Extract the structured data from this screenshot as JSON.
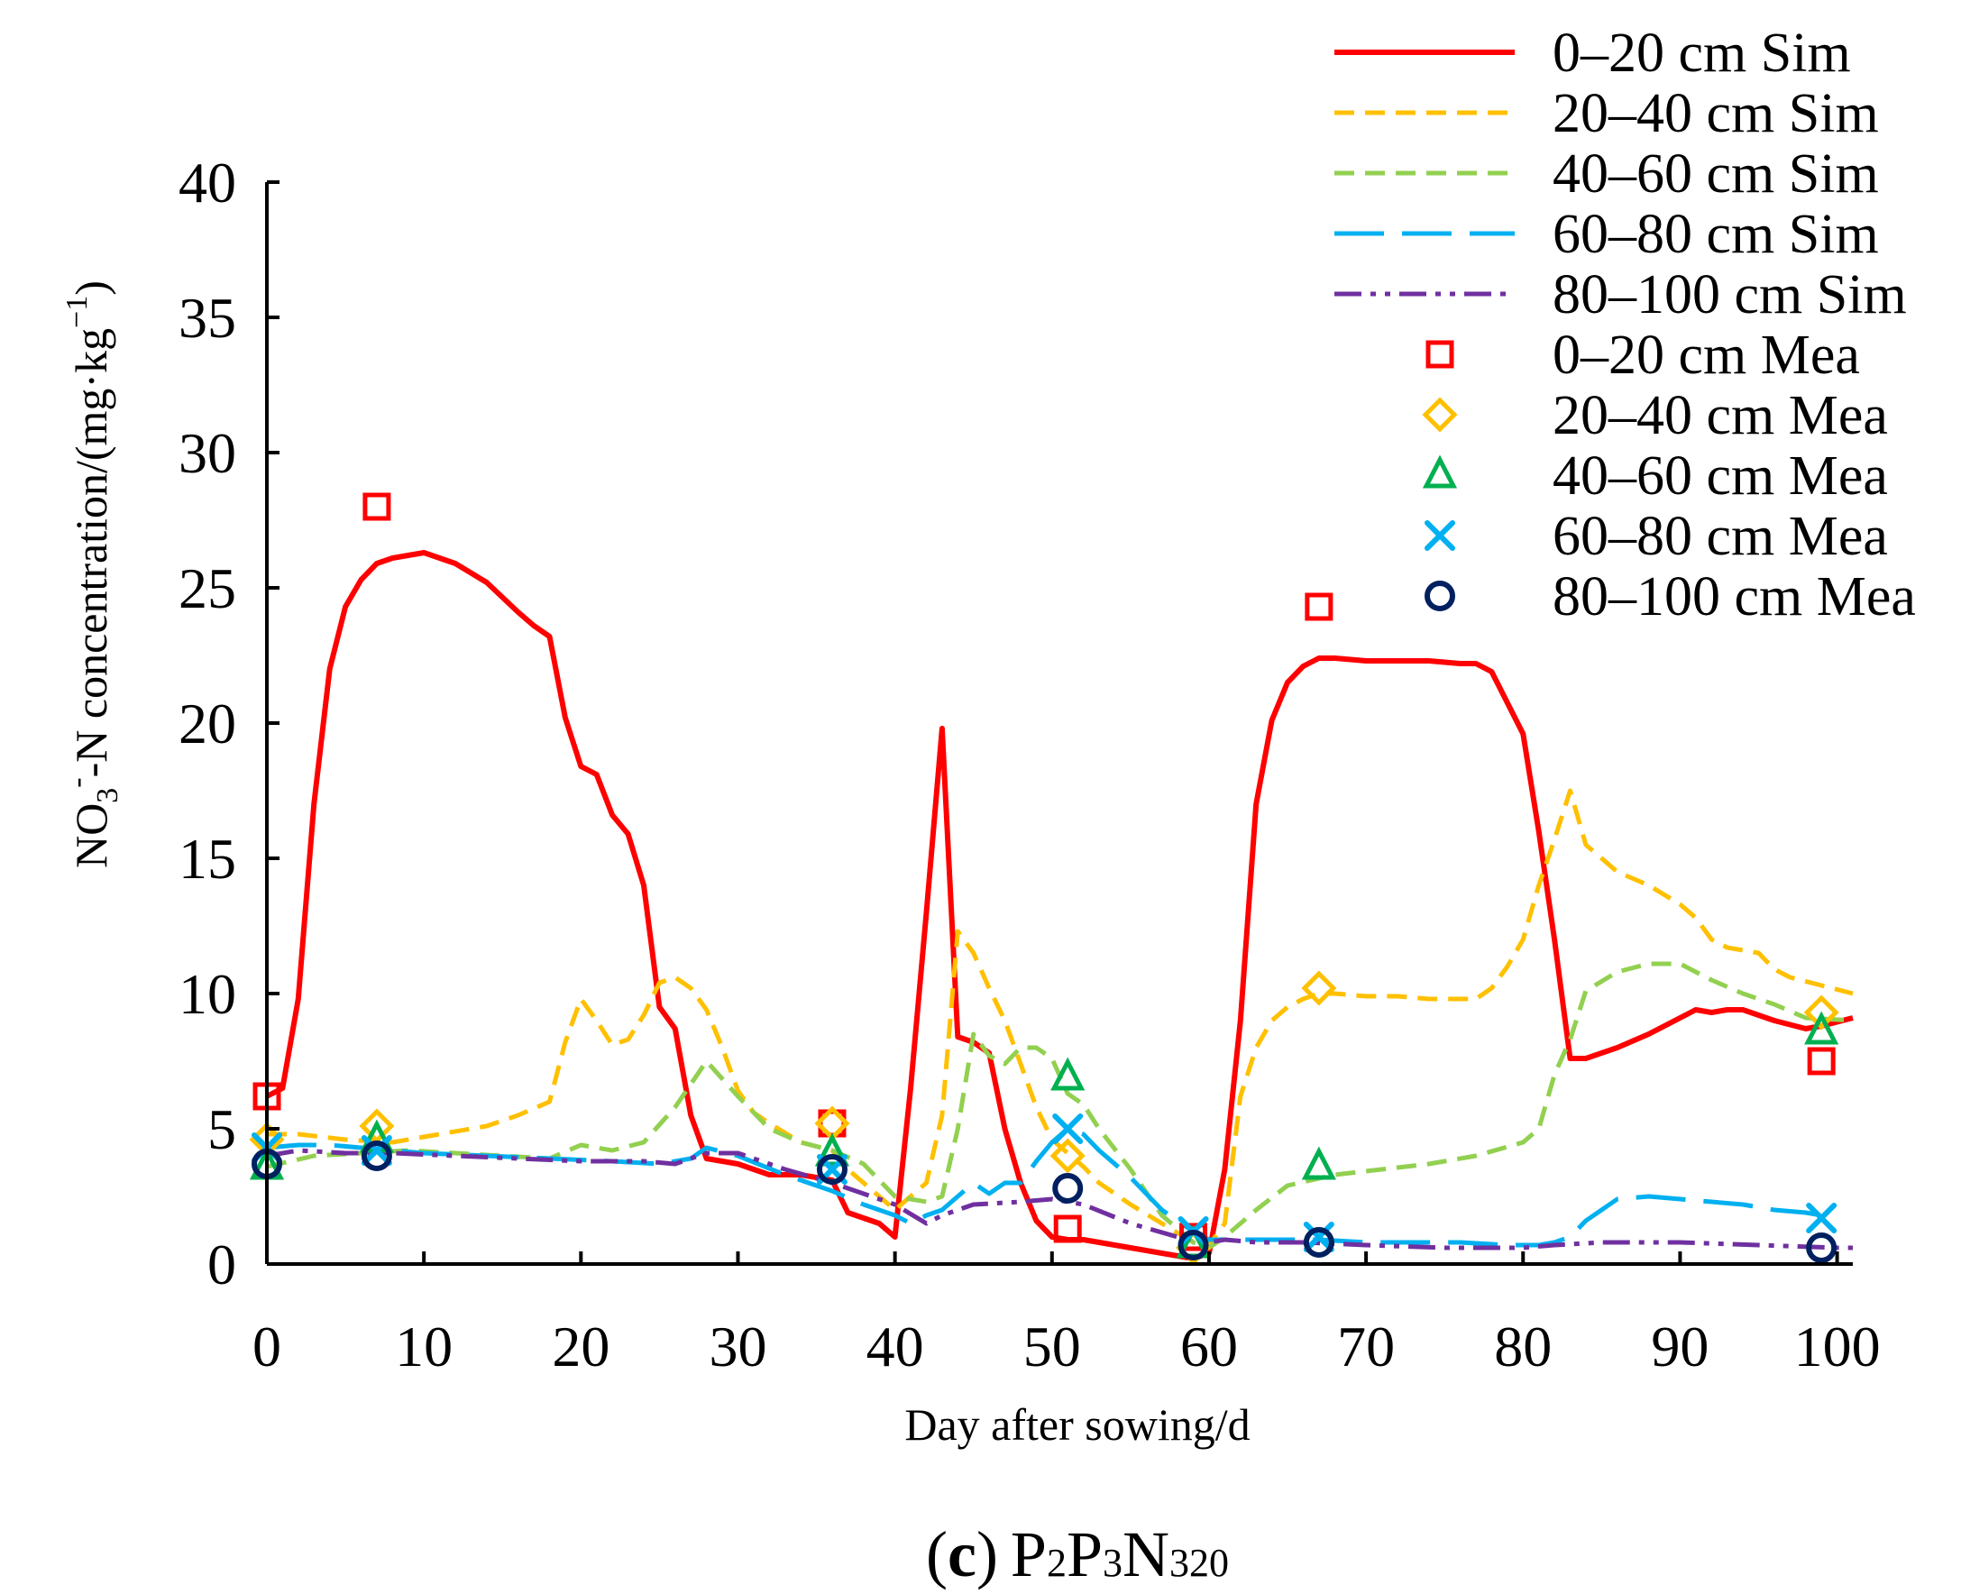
{
  "chart_data": {
    "type": "line",
    "xlabel": "Day after sowing/d",
    "ylabel": {
      "prefix": "NO",
      "sub": "3",
      "sup": "-",
      "middle": "-N concentration/(mg·kg",
      "sup2": "−1",
      "suffix": ")"
    },
    "xlim": [
      0,
      101
    ],
    "ylim": [
      0,
      40
    ],
    "xticks": [
      "0",
      "10",
      "20",
      "30",
      "40",
      "50",
      "60",
      "70",
      "80",
      "90",
      "100"
    ],
    "yticks": [
      "0",
      "5",
      "10",
      "15",
      "20",
      "25",
      "30",
      "35",
      "40"
    ],
    "caption": {
      "paren_open": "(",
      "letter": "c",
      "paren_close": ")",
      "p1": "P",
      "s1": "2",
      "p2": "P",
      "s2": "3",
      "n": "N",
      "s3": "320"
    },
    "legend_position": "top-right",
    "series": [
      {
        "name": "0–20 cm Sim",
        "kind": "line",
        "color": "#ff0000",
        "dash": "solid",
        "x": [
          0,
          1,
          2,
          3,
          4,
          5,
          6,
          7,
          8,
          10,
          12,
          14,
          16,
          17,
          18,
          19,
          20,
          21,
          22,
          23,
          24,
          25,
          26,
          27,
          28,
          29,
          30,
          32,
          34,
          36,
          37,
          38,
          39,
          40,
          41,
          42,
          43,
          44,
          45,
          46,
          47,
          48,
          49,
          50,
          51,
          52,
          55,
          58,
          59,
          60,
          61,
          62,
          63,
          64,
          65,
          66,
          67,
          68,
          70,
          72,
          74,
          76,
          77,
          78,
          80,
          81,
          82,
          83,
          84,
          86,
          88,
          90,
          91,
          92,
          93,
          94,
          96,
          98,
          99,
          101
        ],
        "y": [
          6.2,
          6.5,
          9.8,
          17,
          22,
          24.3,
          25.3,
          25.9,
          26.1,
          26.3,
          25.9,
          25.2,
          24.1,
          23.6,
          23.2,
          20.2,
          18.4,
          18.1,
          16.6,
          15.9,
          14,
          9.5,
          8.7,
          5.5,
          3.9,
          3.8,
          3.7,
          3.3,
          3.3,
          3.1,
          1.9,
          1.7,
          1.5,
          1,
          6.5,
          13,
          19.8,
          8.4,
          8.2,
          7.8,
          5,
          3,
          1.6,
          1,
          0.9,
          0.9,
          0.6,
          0.3,
          0.2,
          0.4,
          3.5,
          9,
          17,
          20.1,
          21.5,
          22.1,
          22.4,
          22.4,
          22.3,
          22.3,
          22.3,
          22.2,
          22.2,
          21.9,
          19.6,
          16,
          12,
          7.6,
          7.6,
          8,
          8.5,
          9.1,
          9.4,
          9.3,
          9.4,
          9.4,
          9,
          8.7,
          8.8,
          9.1
        ]
      },
      {
        "name": "20–40 cm Sim",
        "kind": "line",
        "color": "#ffc000",
        "dash": "dashed",
        "x": [
          0,
          2,
          5,
          8,
          11,
          14,
          16,
          18,
          19,
          20,
          21,
          22,
          23,
          24,
          25,
          26,
          27,
          28,
          29,
          30,
          31,
          32,
          34,
          36,
          37,
          38,
          39,
          40,
          41,
          42,
          43,
          44,
          45,
          46,
          47,
          48,
          49,
          50,
          51,
          52,
          53,
          55,
          57,
          59,
          60,
          61,
          62,
          63,
          64,
          65,
          66,
          67,
          68,
          70,
          72,
          74,
          76,
          77,
          78,
          79,
          80,
          81,
          82,
          83,
          84,
          86,
          88,
          90,
          91,
          92,
          93,
          95,
          96,
          97,
          99,
          101
        ],
        "y": [
          4.8,
          4.8,
          4.6,
          4.5,
          4.8,
          5.1,
          5.5,
          6,
          8.2,
          9.8,
          9,
          8.1,
          8.3,
          9.2,
          10.4,
          10.6,
          10.2,
          9.4,
          8,
          6.4,
          5.6,
          5.2,
          4.5,
          4.2,
          3.5,
          3,
          2.5,
          2,
          2.5,
          3,
          5.5,
          12.3,
          11.5,
          10.2,
          9,
          7.4,
          5.8,
          4.6,
          4.1,
          3.6,
          3,
          2.2,
          1.5,
          0.8,
          0.7,
          1.5,
          6.2,
          8,
          9,
          9.5,
          9.8,
          10,
          10,
          9.9,
          9.9,
          9.8,
          9.8,
          9.8,
          10.2,
          11,
          12,
          14,
          15.7,
          17.5,
          15.5,
          14.5,
          14,
          13.3,
          12.8,
          12,
          11.7,
          11.5,
          10.9,
          10.6,
          10.3,
          10
        ]
      },
      {
        "name": "40–60 cm Sim",
        "kind": "line",
        "color": "#92d050",
        "dash": "dashed",
        "x": [
          0,
          3,
          6,
          9,
          12,
          15,
          18,
          20,
          22,
          24,
          26,
          28,
          30,
          32,
          34,
          36,
          38,
          40,
          42,
          43,
          44,
          45,
          46,
          47,
          48,
          49,
          50,
          51,
          52,
          53,
          55,
          57,
          59,
          60,
          61,
          63,
          65,
          68,
          71,
          74,
          77,
          80,
          81,
          82,
          83,
          84,
          86,
          88,
          90,
          92,
          94,
          96,
          98,
          101
        ],
        "y": [
          3.6,
          4,
          4.1,
          4.2,
          4.1,
          4,
          3.9,
          4.4,
          4.2,
          4.5,
          5.8,
          7.5,
          6.2,
          5,
          4.5,
          4.2,
          3.7,
          2.5,
          2.3,
          2.5,
          5,
          8.5,
          7.7,
          7.4,
          8,
          8,
          7.6,
          6.3,
          5.9,
          5,
          3.5,
          1.8,
          0.8,
          0.6,
          1,
          2,
          2.9,
          3.3,
          3.5,
          3.7,
          4,
          4.5,
          5,
          7,
          8.3,
          10.1,
          10.8,
          11.1,
          11.1,
          10.5,
          10,
          9.6,
          9.1,
          9
        ]
      },
      {
        "name": "60–80 cm Sim",
        "kind": "line",
        "color": "#00b0f0",
        "dash": "longdash",
        "x": [
          0,
          2,
          4,
          6,
          8,
          10,
          14,
          18,
          22,
          25,
          27,
          28,
          30,
          33,
          36,
          38,
          40,
          41,
          42,
          43,
          44,
          45,
          46,
          47,
          48,
          49,
          50,
          51,
          52,
          53,
          55,
          57,
          59,
          60,
          61,
          64,
          67,
          70,
          73,
          76,
          79,
          80,
          81,
          82,
          83,
          84,
          86,
          88,
          90,
          92,
          94,
          96,
          98,
          99
        ],
        "y": [
          4.3,
          4.4,
          4.4,
          4.3,
          4.2,
          4.1,
          4,
          3.9,
          3.8,
          3.7,
          3.9,
          4.3,
          4,
          3.3,
          2.7,
          2.2,
          1.8,
          1.5,
          1.8,
          2,
          2.5,
          3,
          2.6,
          3,
          3,
          3.8,
          4.5,
          5,
          4.8,
          4.2,
          3.2,
          2,
          1.2,
          0.9,
          0.9,
          0.9,
          0.9,
          0.8,
          0.8,
          0.8,
          0.7,
          0.7,
          0.7,
          0.8,
          1,
          1.6,
          2.4,
          2.5,
          2.4,
          2.3,
          2.2,
          2,
          1.9,
          1.8
        ]
      },
      {
        "name": "80–100 cm Sim",
        "kind": "line",
        "color": "#7030a0",
        "dash": "dashdotdot",
        "x": [
          0,
          2,
          5,
          8,
          12,
          16,
          20,
          24,
          26,
          28,
          30,
          33,
          36,
          38,
          40,
          42,
          43,
          45,
          48,
          50,
          52,
          55,
          58,
          60,
          61,
          63,
          66,
          70,
          75,
          80,
          82,
          85,
          90,
          95,
          100,
          101
        ],
        "y": [
          4,
          4.2,
          4.1,
          4.1,
          4,
          3.9,
          3.8,
          3.8,
          3.7,
          4.1,
          4.1,
          3.5,
          3,
          2.6,
          2.2,
          1.5,
          1.8,
          2.2,
          2.3,
          2.4,
          2.2,
          1.5,
          1,
          0.8,
          0.9,
          0.8,
          0.8,
          0.7,
          0.6,
          0.6,
          0.7,
          0.8,
          0.8,
          0.7,
          0.6,
          0.6
        ]
      },
      {
        "name": "0–20 cm Mea",
        "kind": "marker",
        "marker": "square",
        "color": "#ff0000",
        "x": [
          0,
          7,
          36,
          51,
          59,
          67,
          99
        ],
        "y": [
          6.2,
          28,
          5.2,
          1.3,
          1,
          24.3,
          7.5
        ]
      },
      {
        "name": "20–40 cm Mea",
        "kind": "marker",
        "marker": "diamond",
        "color": "#ffc000",
        "x": [
          0,
          7,
          36,
          51,
          59,
          67,
          99
        ],
        "y": [
          4.6,
          5.1,
          5.2,
          4,
          0.6,
          10.2,
          9.3
        ]
      },
      {
        "name": "40–60 cm Mea",
        "kind": "marker",
        "marker": "triangle",
        "color": "#00b050",
        "x": [
          0,
          7,
          36,
          51,
          59,
          67,
          99
        ],
        "y": [
          3.6,
          4.6,
          4.1,
          6.9,
          0.7,
          3.6,
          8.6
        ]
      },
      {
        "name": "60–80 cm Mea",
        "kind": "marker",
        "marker": "x",
        "color": "#00b0f0",
        "x": [
          0,
          7,
          36,
          51,
          59,
          67,
          99
        ],
        "y": [
          4.3,
          4.2,
          3.5,
          5,
          1.2,
          1,
          1.7
        ]
      },
      {
        "name": "80–100 cm Mea",
        "kind": "marker",
        "marker": "circle",
        "color": "#002060",
        "x": [
          0,
          7,
          36,
          51,
          59,
          67,
          99
        ],
        "y": [
          3.7,
          4,
          3.5,
          2.8,
          0.7,
          0.8,
          0.6
        ]
      }
    ]
  }
}
